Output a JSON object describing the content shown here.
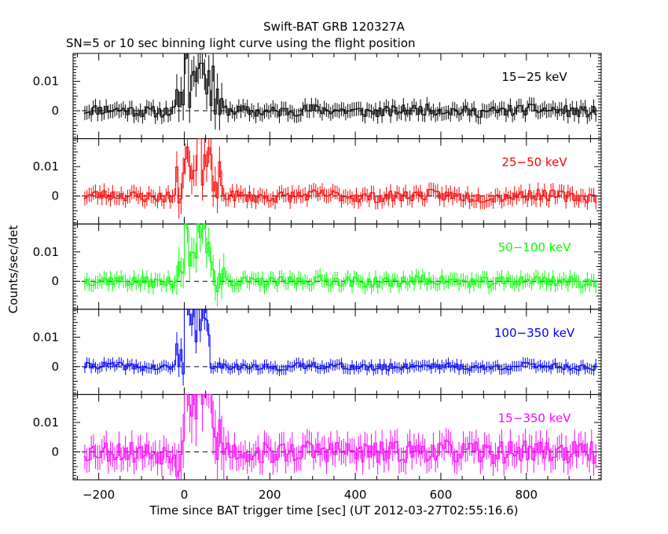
{
  "chart_data": {
    "type": "line",
    "title": "Swift-BAT GRB 120327A",
    "subtitle": "SN=5 or 10 sec binning light curve using the flight position",
    "xlabel": "Time since BAT trigger time [sec] (UT 2012-03-27T02:55:16.6)",
    "ylabel": "Counts/sec/det",
    "xlim": [
      -260,
      975
    ],
    "x_ticks": [
      -200,
      0,
      200,
      400,
      600,
      800
    ],
    "x_tick_labels": [
      "−200",
      "0",
      "200",
      "400",
      "600",
      "800"
    ],
    "ylim": [
      -0.0095,
      0.0195
    ],
    "y_ticks": [
      0,
      0.01
    ],
    "y_tick_labels": [
      "0",
      "0.01"
    ],
    "baseline": 0,
    "panels": [
      {
        "name": "15−25 keV",
        "color": "#000000",
        "noise": 0.0019,
        "seed": 11,
        "peak": 0.02,
        "widen": 1.0,
        "err": 0.0024
      },
      {
        "name": "25−50 keV",
        "color": "#ff0000",
        "noise": 0.0019,
        "seed": 23,
        "peak": 0.02,
        "widen": 1.0,
        "err": 0.0024
      },
      {
        "name": "50−100 keV",
        "color": "#00ff00",
        "noise": 0.0018,
        "seed": 37,
        "peak": 0.02,
        "widen": 1.1,
        "err": 0.0023
      },
      {
        "name": "100−350 keV",
        "color": "#0000ff",
        "noise": 0.0012,
        "seed": 41,
        "peak": 0.02,
        "widen": 0.6,
        "err": 0.0018
      },
      {
        "name": "15−350 keV",
        "color": "#ff00ff",
        "noise": 0.0038,
        "seed": 53,
        "peak": 0.03,
        "widen": 1.2,
        "err": 0.0042
      }
    ]
  }
}
